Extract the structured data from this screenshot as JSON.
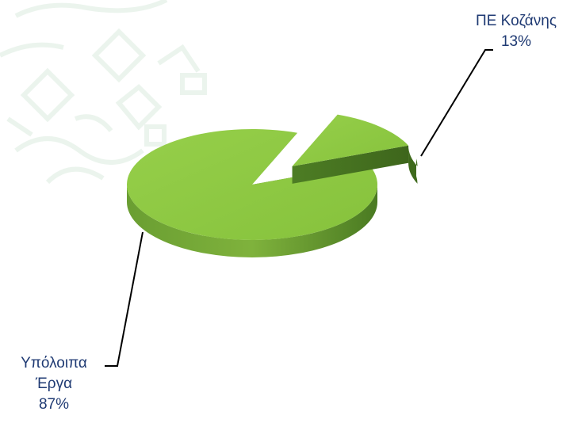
{
  "chart_data": {
    "type": "pie",
    "style": "3d-exploded",
    "title": "",
    "legend": "none",
    "categories": [
      "ΠΕ Κοζάνης",
      "Υπόλοιπα Έργα"
    ],
    "values": [
      13,
      87
    ],
    "unit": "%",
    "series": [
      {
        "values": [
          13,
          87
        ]
      }
    ],
    "slices": [
      {
        "name": "ΠΕ Κοζάνης",
        "value": 13,
        "color": "#7fbf3f",
        "exploded": true
      },
      {
        "name": "Υπόλοιπα Έργα",
        "value": 87,
        "color": "#8cc63f",
        "exploded": false
      }
    ],
    "data_labels": [
      {
        "lines": [
          "ΠΕ Κοζάνης",
          "13%"
        ]
      },
      {
        "lines": [
          "Υπόλοιπα",
          "Έργα",
          "87%"
        ]
      }
    ]
  },
  "colors": {
    "slice_top": "#8cc63f",
    "slice_side_dark": "#4a7a22",
    "slice_side_light": "#6a9e32",
    "label_text": "#1f3a73",
    "leader_line": "#000000",
    "watermark": "#dcece0"
  },
  "watermark": {
    "description_icon": "decorative-pattern-watermark"
  }
}
